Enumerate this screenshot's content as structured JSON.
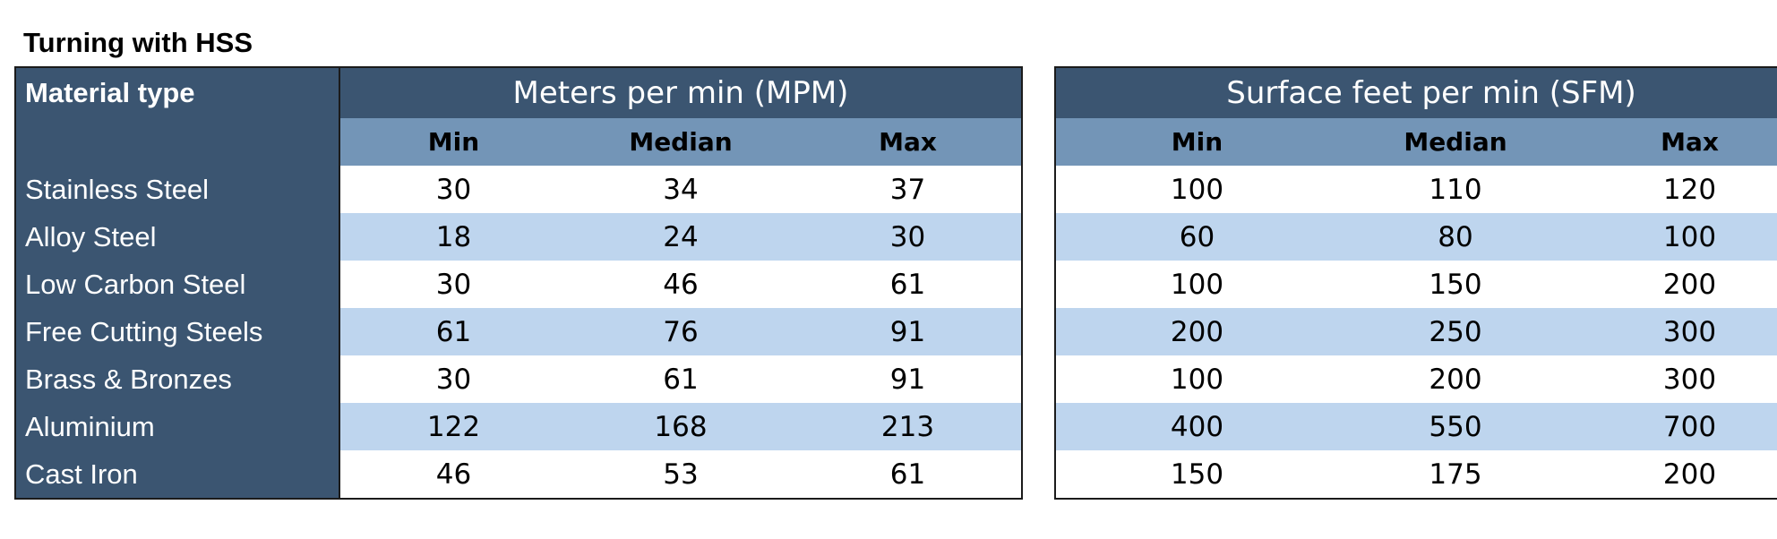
{
  "title": "Turning with HSS",
  "material_header": "Material type",
  "mpm": {
    "heading": "Meters per min (MPM)",
    "columns": [
      "Min",
      "Median",
      "Max"
    ]
  },
  "sfm": {
    "heading": "Surface feet per min (SFM)",
    "columns": [
      "Min",
      "Median",
      "Max"
    ]
  },
  "rows": [
    {
      "material": "Stainless Steel",
      "mpm": [
        "30",
        "34",
        "37"
      ],
      "sfm": [
        "100",
        "110",
        "120"
      ]
    },
    {
      "material": "Alloy Steel",
      "mpm": [
        "18",
        "24",
        "30"
      ],
      "sfm": [
        "60",
        "80",
        "100"
      ]
    },
    {
      "material": "Low Carbon Steel",
      "mpm": [
        "30",
        "46",
        "61"
      ],
      "sfm": [
        "100",
        "150",
        "200"
      ]
    },
    {
      "material": "Free Cutting Steels",
      "mpm": [
        "61",
        "76",
        "91"
      ],
      "sfm": [
        "200",
        "250",
        "300"
      ]
    },
    {
      "material": "Brass & Bronzes",
      "mpm": [
        "30",
        "61",
        "91"
      ],
      "sfm": [
        "100",
        "200",
        "300"
      ]
    },
    {
      "material": "Aluminium",
      "mpm": [
        "122",
        "168",
        "213"
      ],
      "sfm": [
        "400",
        "550",
        "700"
      ]
    },
    {
      "material": "Cast Iron",
      "mpm": [
        "46",
        "53",
        "61"
      ],
      "sfm": [
        "150",
        "175",
        "200"
      ]
    }
  ],
  "colors": {
    "header_dark": "#3b5571",
    "header_mid": "#7395b7",
    "row_alt": "#bed5ee"
  }
}
